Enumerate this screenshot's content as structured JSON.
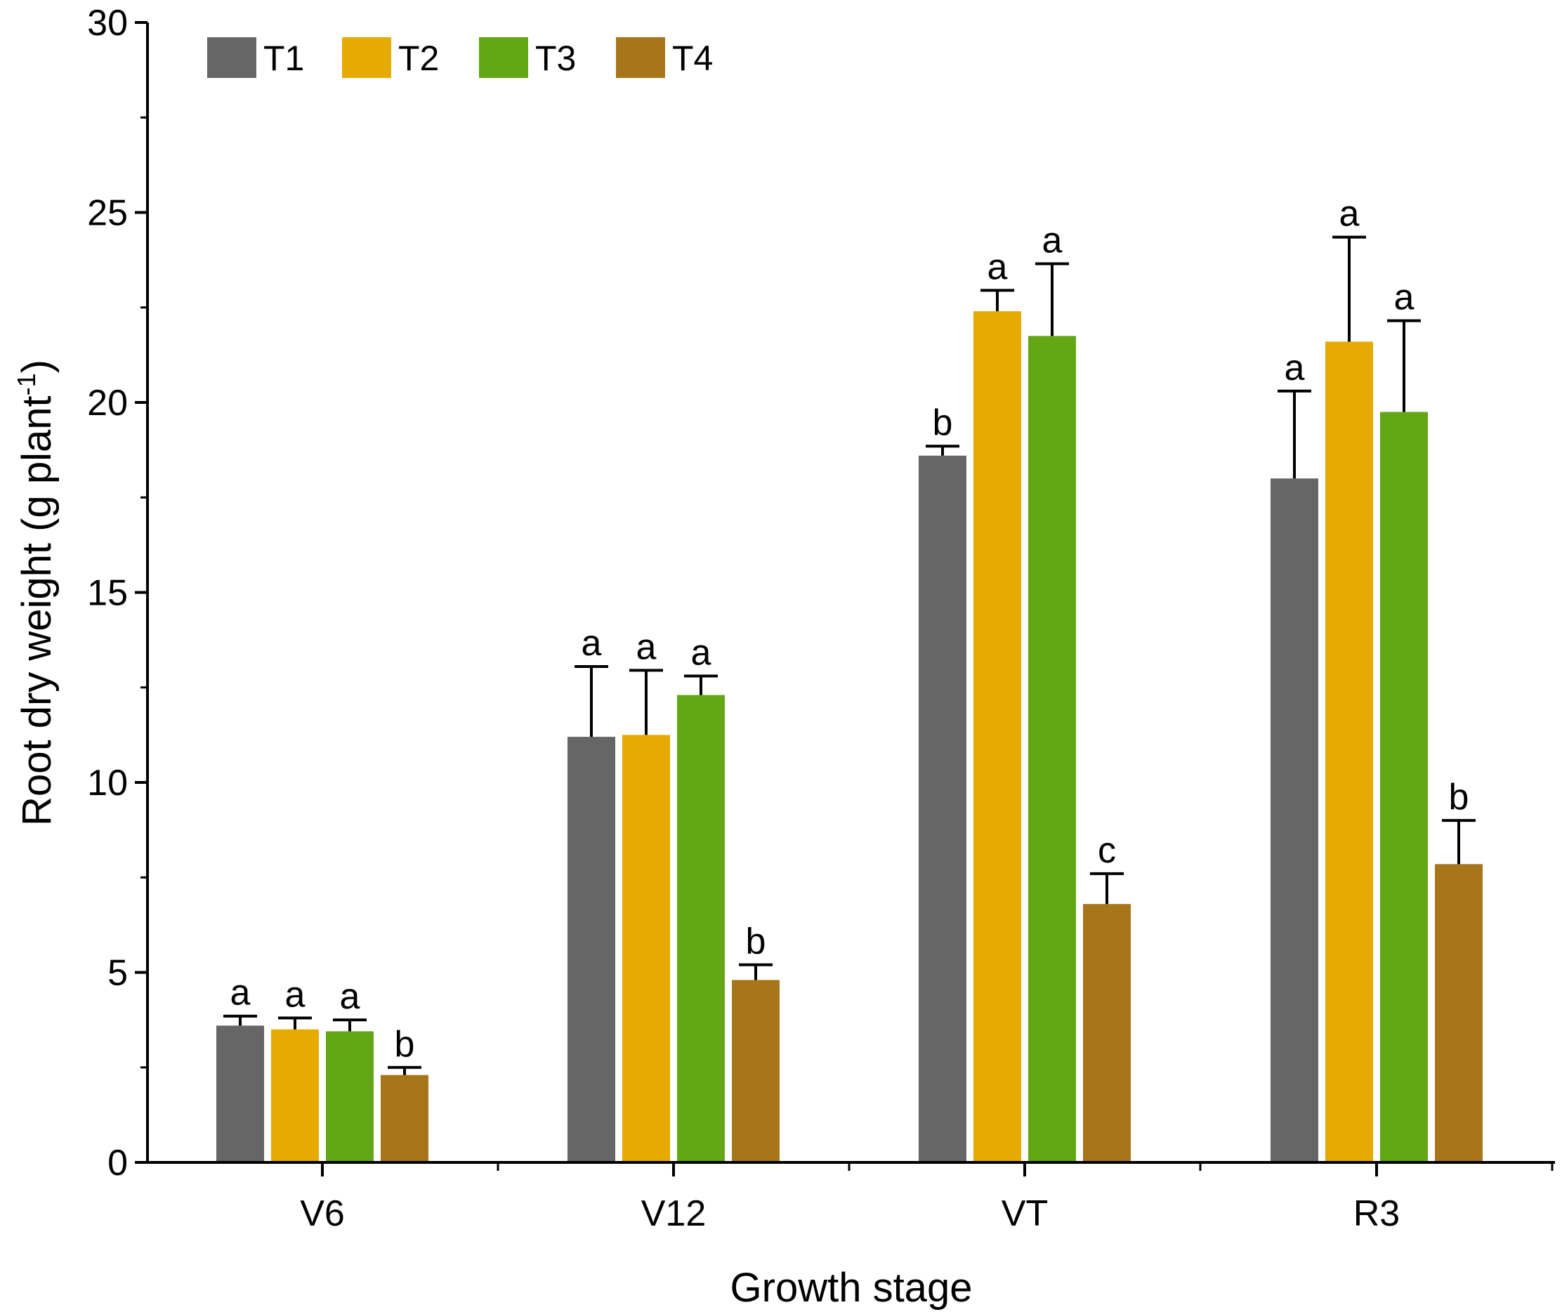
{
  "chart_data": {
    "type": "bar",
    "title": "",
    "xlabel": "Growth stage",
    "ylabel": "Root dry weight (g plant",
    "ylabel_sup": "-1",
    "ylabel_tail": ")",
    "categories": [
      "V6",
      "V12",
      "VT",
      "R3"
    ],
    "ylim": [
      0,
      30
    ],
    "yticks": [
      "0",
      "5",
      "10",
      "15",
      "20",
      "25",
      "30"
    ],
    "grid": false,
    "legend_position": "top-left",
    "series": [
      {
        "name": "T1",
        "color": "#666666",
        "values": [
          3.6,
          11.2,
          18.6,
          18.0
        ],
        "errors": [
          0.25,
          1.85,
          0.25,
          2.3
        ],
        "letters": [
          "a",
          "a",
          "b",
          "a"
        ]
      },
      {
        "name": "T2",
        "color": "#E6AA00",
        "values": [
          3.5,
          11.25,
          22.4,
          21.6
        ],
        "errors": [
          0.3,
          1.7,
          0.55,
          2.75
        ],
        "letters": [
          "a",
          "a",
          "a",
          "a"
        ]
      },
      {
        "name": "T3",
        "color": "#63A616",
        "values": [
          3.45,
          12.3,
          21.75,
          19.75
        ],
        "errors": [
          0.3,
          0.5,
          1.9,
          2.4
        ],
        "letters": [
          "a",
          "a",
          "a",
          "a"
        ]
      },
      {
        "name": "T4",
        "color": "#A7761A",
        "values": [
          2.3,
          4.8,
          6.8,
          7.85
        ],
        "errors": [
          0.2,
          0.4,
          0.8,
          1.15
        ],
        "letters": [
          "b",
          "b",
          "c",
          "b"
        ]
      }
    ]
  }
}
